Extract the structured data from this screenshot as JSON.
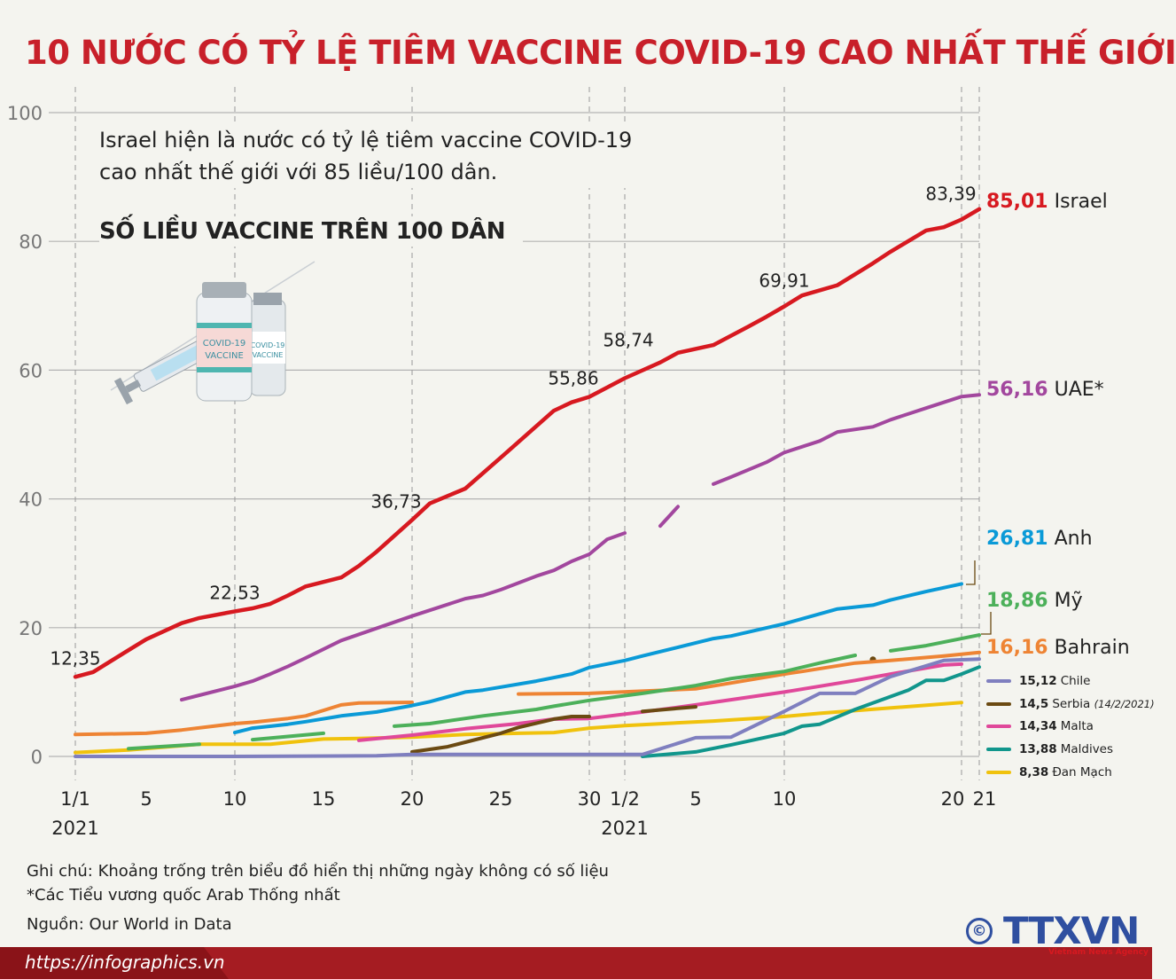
{
  "header": {
    "title": "10 NƯỚC CÓ TỶ LỆ TIÊM VACCINE COVID-19 CAO NHẤT THẾ GIỚI"
  },
  "intro": {
    "line1": "Israel hiện là nước có tỷ lệ tiêm vaccine COVID-19",
    "line2": "cao nhất thế giới với 85 liều/100 dân."
  },
  "illustration": {
    "vial_text_1": "COVID-19",
    "vial_text_2": "VACCINE"
  },
  "chart_data": {
    "type": "line",
    "title": "SỐ LIỀU VACCINE TRÊN 100 DÂN",
    "ylim": [
      0,
      100
    ],
    "yticks": [
      0,
      20,
      40,
      60,
      80,
      100
    ],
    "grid": true,
    "xticks": [
      {
        "date": "1/1",
        "label": "1/1",
        "year": "2021"
      },
      {
        "date": "5/1",
        "label": "5"
      },
      {
        "date": "10/1",
        "label": "10"
      },
      {
        "date": "15/1",
        "label": "15"
      },
      {
        "date": "20/1",
        "label": "20"
      },
      {
        "date": "25/1",
        "label": "25"
      },
      {
        "date": "30/1",
        "label": "30"
      },
      {
        "date": "1/2",
        "label": "1/2",
        "year": "2021"
      },
      {
        "date": "5/2",
        "label": "5"
      },
      {
        "date": "10/2",
        "label": "10"
      },
      {
        "date": "20/2",
        "label": "20"
      },
      {
        "date": "21/2",
        "label": "21"
      }
    ],
    "dashed_dates": [
      "1/1",
      "10/1",
      "20/1",
      "30/1",
      "1/2",
      "10/2",
      "20/2",
      "21/2"
    ],
    "annotations": [
      {
        "date": "1/1",
        "value": 12.35,
        "label": "12,35"
      },
      {
        "date": "10/1",
        "value": 22.53,
        "label": "22,53"
      },
      {
        "date": "20/1",
        "value": 36.73,
        "label": "36,73"
      },
      {
        "date": "30/1",
        "value": 55.86,
        "label": "55,86"
      },
      {
        "date": "1/2",
        "value": 58.74,
        "label": "58,74"
      },
      {
        "date": "10/2",
        "value": 69.91,
        "label": "69,91"
      },
      {
        "date": "20/2",
        "value": 83.39,
        "label": "83,39"
      }
    ],
    "series": [
      {
        "name": "Israel",
        "final": "85,01",
        "color": "#d71920",
        "segments": [
          [
            [
              "1/1",
              12.35
            ],
            [
              "2/1",
              13.1
            ],
            [
              "4/1",
              16.5
            ],
            [
              "5/1",
              18.2
            ],
            [
              "7/1",
              20.7
            ],
            [
              "8/1",
              21.5
            ],
            [
              "10/1",
              22.53
            ],
            [
              "11/1",
              23
            ],
            [
              "12/1",
              23.7
            ],
            [
              "13/1",
              25
            ],
            [
              "14/1",
              26.4
            ],
            [
              "16/1",
              27.8
            ],
            [
              "17/1",
              29.6
            ],
            [
              "18/1",
              31.8
            ],
            [
              "20/1",
              36.73
            ],
            [
              "21/1",
              39.3
            ],
            [
              "23/1",
              41.6
            ],
            [
              "25/1",
              46.4
            ],
            [
              "28/1",
              53.7
            ],
            [
              "29/1",
              55
            ],
            [
              "30/1",
              55.86
            ],
            [
              "1/2",
              58.74
            ],
            [
              "3/2",
              61.2
            ],
            [
              "4/2",
              62.7
            ],
            [
              "6/2",
              63.9
            ],
            [
              "8/2",
              66.8
            ],
            [
              "9/2",
              68.3
            ],
            [
              "10/2",
              69.91
            ],
            [
              "11/2",
              71.6
            ],
            [
              "13/2",
              73.2
            ],
            [
              "15/2",
              76.6
            ],
            [
              "16/2",
              78.4
            ],
            [
              "18/2",
              81.7
            ],
            [
              "19/2",
              82.2
            ],
            [
              "20/2",
              83.39
            ],
            [
              "21/2",
              85.01
            ]
          ]
        ]
      },
      {
        "name": "UAE*",
        "final": "56,16",
        "color": "#a2479e",
        "segments": [
          [
            [
              "7/1",
              8.8
            ],
            [
              "8/1",
              9.5
            ],
            [
              "10/1",
              10.9
            ],
            [
              "11/1",
              11.7
            ],
            [
              "12/1",
              12.8
            ],
            [
              "13/1",
              14
            ],
            [
              "14/1",
              15.3
            ],
            [
              "16/1",
              18
            ],
            [
              "20/1",
              21.8
            ],
            [
              "21/1",
              22.7
            ],
            [
              "23/1",
              24.5
            ],
            [
              "24/1",
              25
            ],
            [
              "25/1",
              25.9
            ],
            [
              "27/1",
              28
            ],
            [
              "28/1",
              28.9
            ],
            [
              "29/1",
              30.3
            ],
            [
              "30/1",
              31.4
            ],
            [
              "31/1",
              33.7
            ],
            [
              "1/2",
              34.7
            ]
          ],
          [
            [
              "3/2",
              35.8
            ],
            [
              "4/2",
              38.8
            ]
          ],
          [
            [
              "6/2",
              42.3
            ],
            [
              "7/2",
              43.4
            ],
            [
              "9/2",
              45.7
            ],
            [
              "10/2",
              47.2
            ],
            [
              "12/2",
              49
            ],
            [
              "13/2",
              50.4
            ],
            [
              "15/2",
              51.2
            ],
            [
              "16/2",
              52.3
            ],
            [
              "18/2",
              54.1
            ],
            [
              "20/2",
              55.9
            ],
            [
              "21/2",
              56.16
            ]
          ]
        ]
      },
      {
        "name": "Anh",
        "final": "26,81",
        "color": "#0a9ad7",
        "segments": [
          [
            [
              "10/1",
              3.7
            ],
            [
              "11/1",
              4.4
            ],
            [
              "13/1",
              5
            ],
            [
              "14/1",
              5.4
            ],
            [
              "16/1",
              6.3
            ],
            [
              "18/1",
              6.9
            ],
            [
              "20/1",
              7.9
            ],
            [
              "21/1",
              8.5
            ],
            [
              "23/1",
              10
            ],
            [
              "24/1",
              10.3
            ],
            [
              "27/1",
              11.7
            ],
            [
              "29/1",
              12.8
            ],
            [
              "30/1",
              13.8
            ],
            [
              "1/2",
              14.9
            ],
            [
              "2/2",
              15.6
            ],
            [
              "6/2",
              18.3
            ],
            [
              "7/2",
              18.7
            ],
            [
              "10/2",
              20.6
            ],
            [
              "13/2",
              22.9
            ],
            [
              "15/2",
              23.5
            ],
            [
              "16/2",
              24.3
            ],
            [
              "18/2",
              25.6
            ],
            [
              "20/2",
              26.81
            ]
          ]
        ]
      },
      {
        "name": "Mỹ",
        "final": "18,86",
        "color": "#4cb05a",
        "segments": [
          [
            [
              "4/1",
              1.2
            ],
            [
              "8/1",
              1.9
            ]
          ],
          [
            [
              "11/1",
              2.6
            ],
            [
              "15/1",
              3.6
            ]
          ],
          [
            [
              "19/1",
              4.7
            ],
            [
              "21/1",
              5.1
            ],
            [
              "24/1",
              6.3
            ],
            [
              "27/1",
              7.3
            ],
            [
              "28/1",
              7.8
            ],
            [
              "30/1",
              8.7
            ],
            [
              "2/2",
              9.8
            ],
            [
              "5/2",
              11
            ],
            [
              "7/2",
              12.1
            ],
            [
              "10/2",
              13.2
            ],
            [
              "12/2",
              14.5
            ],
            [
              "14/2",
              15.7
            ]
          ],
          [
            [
              "16/2",
              16.4
            ],
            [
              "18/2",
              17.2
            ],
            [
              "21/2",
              18.86
            ]
          ]
        ]
      },
      {
        "name": "Bahrain",
        "final": "16,16",
        "color": "#ee8434",
        "segments": [
          [
            [
              "1/1",
              3.4
            ],
            [
              "5/1",
              3.6
            ],
            [
              "7/1",
              4.1
            ],
            [
              "10/1",
              5.1
            ],
            [
              "11/1",
              5.3
            ],
            [
              "13/1",
              5.9
            ],
            [
              "14/1",
              6.3
            ],
            [
              "16/1",
              8
            ],
            [
              "17/1",
              8.3
            ],
            [
              "20/1",
              8.4
            ]
          ],
          [
            [
              "26/1",
              9.7
            ],
            [
              "30/1",
              9.8
            ],
            [
              "5/2",
              10.5
            ],
            [
              "7/2",
              11.4
            ],
            [
              "10/2",
              12.8
            ],
            [
              "11/2",
              13.2
            ],
            [
              "14/2",
              14.5
            ],
            [
              "16/2",
              14.9
            ],
            [
              "19/2",
              15.6
            ],
            [
              "21/2",
              16.16
            ]
          ]
        ]
      },
      {
        "name": "Chile",
        "final": "15,12",
        "color": "#7f7fbf",
        "legend": true,
        "segments": [
          [
            [
              "1/1",
              0
            ],
            [
              "10/1",
              0
            ],
            [
              "18/1",
              0.1
            ],
            [
              "20/1",
              0.3
            ],
            [
              "2/2",
              0.3
            ],
            [
              "5/2",
              2.9
            ],
            [
              "7/2",
              3
            ],
            [
              "10/2",
              7
            ],
            [
              "12/2",
              9.8
            ],
            [
              "14/2",
              9.8
            ],
            [
              "16/2",
              12.4
            ],
            [
              "19/2",
              14.9
            ],
            [
              "21/2",
              15.12
            ]
          ]
        ]
      },
      {
        "name": "Serbia",
        "final": "14,5",
        "note": "(14/2/2021)",
        "color": "#6b4a12",
        "legend": true,
        "segments": [
          [
            [
              "20/1",
              0.7
            ],
            [
              "22/1",
              1.5
            ],
            [
              "23/1",
              2.2
            ],
            [
              "25/1",
              3.6
            ],
            [
              "26/1",
              4.5
            ],
            [
              "28/1",
              5.8
            ],
            [
              "29/1",
              6.2
            ],
            [
              "30/1",
              6.2
            ]
          ],
          [
            [
              "2/2",
              7
            ],
            [
              "5/2",
              7.7
            ]
          ],
          [
            [
              "14/2",
              14.5
            ]
          ]
        ]
      },
      {
        "name": "Malta",
        "final": "14,34",
        "color": "#e0489a",
        "legend": true,
        "segments": [
          [
            [
              "17/1",
              2.5
            ],
            [
              "20/1",
              3.3
            ],
            [
              "23/1",
              4.3
            ],
            [
              "26/1",
              5.1
            ],
            [
              "28/1",
              5.8
            ],
            [
              "30/1",
              5.9
            ],
            [
              "2/2",
              6.9
            ],
            [
              "5/2",
              8
            ],
            [
              "10/2",
              10
            ],
            [
              "14/2",
              11.8
            ],
            [
              "16/2",
              12.8
            ],
            [
              "19/2",
              14.2
            ],
            [
              "20/2",
              14.34
            ]
          ]
        ]
      },
      {
        "name": "Maldives",
        "final": "13,88",
        "color": "#11968c",
        "legend": true,
        "segments": [
          [
            [
              "2/2",
              0
            ],
            [
              "5/2",
              0.7
            ],
            [
              "7/2",
              1.8
            ],
            [
              "10/2",
              3.6
            ],
            [
              "11/2",
              4.7
            ],
            [
              "12/2",
              5
            ],
            [
              "14/2",
              7.3
            ],
            [
              "17/2",
              10.3
            ],
            [
              "18/2",
              11.8
            ],
            [
              "19/2",
              11.8
            ],
            [
              "20/2",
              12.8
            ],
            [
              "21/2",
              13.88
            ]
          ]
        ]
      },
      {
        "name": "Đan Mạch",
        "final": "8,38",
        "color": "#f0c20d",
        "legend": true,
        "segments": [
          [
            [
              "1/1",
              0.6
            ],
            [
              "4/1",
              1
            ],
            [
              "8/1",
              1.9
            ],
            [
              "12/1",
              1.9
            ],
            [
              "15/1",
              2.7
            ],
            [
              "17/1",
              2.8
            ],
            [
              "20/1",
              3
            ],
            [
              "23/1",
              3.4
            ],
            [
              "26/1",
              3.6
            ],
            [
              "28/1",
              3.7
            ],
            [
              "30/1",
              4.4
            ],
            [
              "1/2",
              4.8
            ],
            [
              "6/2",
              5.5
            ],
            [
              "10/2",
              6.2
            ],
            [
              "12/2",
              6.7
            ],
            [
              "20/2",
              8.38
            ]
          ]
        ]
      }
    ]
  },
  "notes": {
    "line1": "Ghi chú: Khoảng trống trên biểu đồ hiển thị những ngày không có số liệu",
    "line2": "*Các Tiểu vương quốc Arab Thống nhất",
    "source": "Nguồn: Our World in Data"
  },
  "footer": {
    "url": "https://infographics.vn",
    "copyright": "©",
    "logo_text": "TTXVN",
    "logo_sub": "Vietnam News Agency"
  }
}
